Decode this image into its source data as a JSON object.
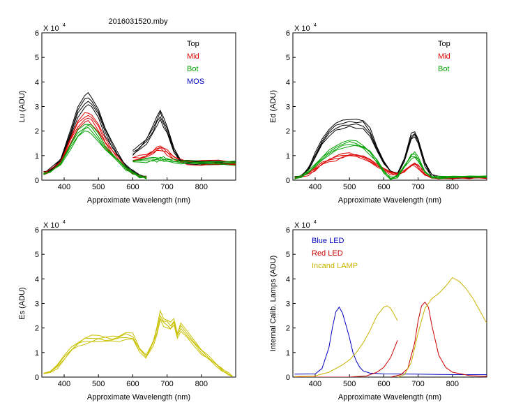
{
  "figure_title": "2016031520.mby",
  "chart_data": [
    {
      "id": "lu",
      "type": "line",
      "xlabel": "Approximate Wavelength (nm)",
      "ylabel": "Lu (ADU)",
      "exponent_base": "X 10",
      "exponent_power": "4",
      "xlim": [
        335,
        900
      ],
      "ylim": [
        0,
        60000
      ],
      "xticks": [
        "400",
        "500",
        "600",
        "700",
        "800"
      ],
      "yticks": [
        "0",
        "1",
        "2",
        "3",
        "4",
        "5",
        "6"
      ],
      "legend": [
        {
          "label": "Top",
          "color": "#000000"
        },
        {
          "label": "Mid",
          "color": "#dd0000"
        },
        {
          "label": "Bot",
          "color": "#00a000"
        },
        {
          "label": "MOS",
          "color": "#0000c0"
        }
      ],
      "series": [
        {
          "name": "Top",
          "color": "#000000",
          "segments": [
            {
              "x": [
                340,
                360,
                390,
                420,
                440,
                460,
                470,
                480,
                500,
                520,
                540,
                560,
                580,
                600,
                620,
                640
              ],
              "y": [
                3200,
                4500,
                9000,
                21000,
                30000,
                34500,
                35500,
                34000,
                29000,
                21000,
                15000,
                10000,
                6000,
                3500,
                1800,
                1200
              ]
            },
            {
              "x": [
                600,
                620,
                640,
                660,
                670,
                680,
                690,
                700,
                720,
                740,
                760,
                800,
                850,
                900
              ],
              "y": [
                11500,
                14000,
                17000,
                22000,
                25500,
                28500,
                25000,
                22000,
                13000,
                8200,
                7800,
                7700,
                7600,
                7500
              ]
            }
          ]
        },
        {
          "name": "Mid",
          "color": "#dd0000",
          "segments": [
            {
              "x": [
                340,
                360,
                390,
                420,
                440,
                460,
                470,
                480,
                500,
                520,
                540,
                560,
                580,
                600,
                620,
                640
              ],
              "y": [
                3000,
                4000,
                8000,
                18000,
                24000,
                27000,
                27500,
                26500,
                22500,
                16500,
                12500,
                9000,
                5500,
                3300,
                1700,
                1100
              ]
            },
            {
              "x": [
                600,
                620,
                640,
                660,
                670,
                680,
                690,
                700,
                720,
                740,
                760,
                800,
                850,
                900
              ],
              "y": [
                9500,
                10000,
                11000,
                12500,
                13500,
                14000,
                13000,
                12000,
                9500,
                8000,
                7800,
                7700,
                7600,
                7500
              ]
            }
          ]
        },
        {
          "name": "Bot",
          "color": "#00a000",
          "segments": [
            {
              "x": [
                340,
                360,
                390,
                420,
                440,
                460,
                470,
                480,
                500,
                520,
                540,
                560,
                580,
                600,
                620,
                640
              ],
              "y": [
                2800,
                3700,
                7000,
                15000,
                20000,
                22500,
                23000,
                22000,
                18500,
                14000,
                11000,
                8000,
                5000,
                3000,
                1600,
                1000
              ]
            },
            {
              "x": [
                600,
                620,
                640,
                660,
                670,
                680,
                690,
                700,
                720,
                740,
                760,
                800,
                850,
                900
              ],
              "y": [
                8200,
                8400,
                8600,
                8900,
                9000,
                9200,
                9000,
                8800,
                8200,
                7900,
                7800,
                7700,
                7600,
                7500
              ]
            }
          ]
        }
      ]
    },
    {
      "id": "ed",
      "type": "line",
      "xlabel": "Approximate Wavelength (nm)",
      "ylabel": "Ed  (ADU)",
      "exponent_base": "X 10",
      "exponent_power": "4",
      "xlim": [
        335,
        900
      ],
      "ylim": [
        0,
        60000
      ],
      "xticks": [
        "400",
        "500",
        "600",
        "700",
        "800"
      ],
      "yticks": [
        "0",
        "1",
        "2",
        "3",
        "4",
        "5",
        "6"
      ],
      "legend": [
        {
          "label": "Top",
          "color": "#000000"
        },
        {
          "label": "Mid",
          "color": "#dd0000"
        },
        {
          "label": "Bot",
          "color": "#00a000"
        }
      ],
      "series": [
        {
          "name": "Top",
          "color": "#000000",
          "x": [
            340,
            360,
            380,
            400,
            420,
            440,
            460,
            480,
            500,
            520,
            540,
            560,
            580,
            600,
            620,
            640,
            660,
            680,
            690,
            700,
            720,
            740,
            760,
            800,
            850,
            900
          ],
          "y": [
            1000,
            2000,
            5000,
            11000,
            17000,
            21000,
            23500,
            24500,
            25000,
            24800,
            24500,
            21000,
            14000,
            8000,
            4000,
            3000,
            9000,
            19000,
            20000,
            17000,
            7000,
            2000,
            1300,
            1200,
            1200,
            1200
          ]
        },
        {
          "name": "Mid",
          "color": "#dd0000",
          "x": [
            340,
            360,
            380,
            400,
            420,
            440,
            460,
            480,
            500,
            520,
            540,
            560,
            580,
            600,
            620,
            640,
            660,
            680,
            690,
            700,
            720,
            740,
            760,
            800,
            850,
            900
          ],
          "y": [
            800,
            1200,
            2500,
            4500,
            7000,
            8500,
            9500,
            10500,
            11000,
            10500,
            9500,
            8000,
            6000,
            4500,
            3000,
            2500,
            4000,
            6500,
            7000,
            6000,
            3000,
            1500,
            1200,
            1200,
            1200,
            1200
          ]
        },
        {
          "name": "Bot",
          "color": "#00a000",
          "x": [
            340,
            360,
            380,
            400,
            420,
            440,
            460,
            480,
            500,
            520,
            540,
            560,
            580,
            600,
            620,
            640,
            660,
            680,
            690,
            700,
            720,
            740,
            760,
            800,
            850,
            900
          ],
          "y": [
            900,
            1600,
            3500,
            6500,
            9500,
            12000,
            14000,
            15500,
            16500,
            16000,
            14500,
            12000,
            8000,
            3500,
            800,
            1500,
            6000,
            10500,
            11000,
            9500,
            4000,
            1500,
            1200,
            1200,
            1200,
            1200
          ]
        }
      ]
    },
    {
      "id": "es",
      "type": "line",
      "xlabel": "Approximate Wavelength (nm)",
      "ylabel": "Es  (ADU)",
      "exponent_base": "X 10",
      "exponent_power": "4",
      "xlim": [
        335,
        900
      ],
      "ylim": [
        0,
        60000
      ],
      "xticks": [
        "400",
        "500",
        "600",
        "700",
        "800"
      ],
      "yticks": [
        "0",
        "1",
        "2",
        "3",
        "4",
        "5",
        "6"
      ],
      "legend": [],
      "series": [
        {
          "name": "Es",
          "color": "#c8c000",
          "segments": [
            {
              "x": [
                340,
                360,
                380,
                400,
                420,
                440,
                460,
                480,
                500,
                520,
                540,
                560,
                580,
                600,
                620,
                640
              ],
              "y": [
                1200,
                2000,
                4500,
                8500,
                12000,
                14500,
                16000,
                16500,
                17000,
                16800,
                16500,
                17000,
                18000,
                17500,
                12000,
                9000
              ]
            },
            {
              "x": [
                640,
                660,
                670,
                680,
                690,
                700,
                710,
                720,
                730,
                740,
                760,
                780,
                800,
                820,
                840,
                860,
                880,
                890
              ],
              "y": [
                9000,
                15000,
                20000,
                26500,
                24000,
                23500,
                22000,
                24000,
                18000,
                21500,
                18000,
                14500,
                11000,
                8500,
                6000,
                3500,
                1500,
                800
              ]
            }
          ]
        }
      ]
    },
    {
      "id": "lamps",
      "type": "line",
      "xlabel": "Approximate Wavelength (nm)",
      "ylabel": "Internal Calib. Lamps (ADU)",
      "exponent_base": "X 10",
      "exponent_power": "4",
      "xlim": [
        335,
        900
      ],
      "ylim": [
        0,
        60000
      ],
      "xticks": [
        "400",
        "500",
        "600",
        "700",
        "800"
      ],
      "yticks": [
        "0",
        "1",
        "2",
        "3",
        "4",
        "5",
        "6"
      ],
      "legend": [
        {
          "label": "Blue LED",
          "color": "#0000c0"
        },
        {
          "label": "Red LED",
          "color": "#cc0000"
        },
        {
          "label": "Incand LAMP",
          "color": "#c8b400"
        }
      ],
      "series": [
        {
          "name": "Blue LED",
          "color": "#0000c0",
          "x": [
            340,
            400,
            420,
            440,
            450,
            460,
            470,
            480,
            490,
            500,
            510,
            520,
            530,
            540,
            560,
            600,
            700,
            800,
            900
          ],
          "y": [
            1200,
            1300,
            3500,
            12000,
            20000,
            26500,
            28500,
            26000,
            21000,
            16000,
            10000,
            6500,
            4000,
            2500,
            1600,
            1300,
            1200,
            1000,
            1000
          ]
        },
        {
          "name": "Red LED",
          "color": "#cc0000",
          "segments": [
            {
              "x": [
                340,
                500,
                550,
                580,
                600,
                620,
                640
              ],
              "y": [
                0,
                0,
                500,
                2000,
                4000,
                8000,
                15000
              ]
            },
            {
              "x": [
                620,
                650,
                670,
                690,
                700,
                710,
                720,
                730,
                740,
                760,
                780,
                800,
                850,
                900
              ],
              "y": [
                0,
                1000,
                3500,
                14000,
                23000,
                29000,
                30500,
                28500,
                21000,
                9000,
                4000,
                2000,
                600,
                300
              ]
            }
          ]
        },
        {
          "name": "Incand LAMP",
          "color": "#c8b400",
          "segments": [
            {
              "x": [
                340,
                400,
                440,
                480,
                500,
                520,
                540,
                560,
                580,
                600,
                610,
                620,
                640
              ],
              "y": [
                200,
                500,
                2000,
                5000,
                7000,
                10000,
                14000,
                19000,
                25000,
                28500,
                29000,
                28000,
                23000
              ]
            },
            {
              "x": [
                640,
                660,
                680,
                700,
                720,
                740,
                760,
                780,
                800,
                820,
                840,
                860,
                880,
                900
              ],
              "y": [
                0,
                1000,
                6000,
                18000,
                28000,
                32000,
                34000,
                37000,
                40500,
                39000,
                36000,
                32000,
                27000,
                22000
              ]
            }
          ]
        }
      ]
    }
  ]
}
